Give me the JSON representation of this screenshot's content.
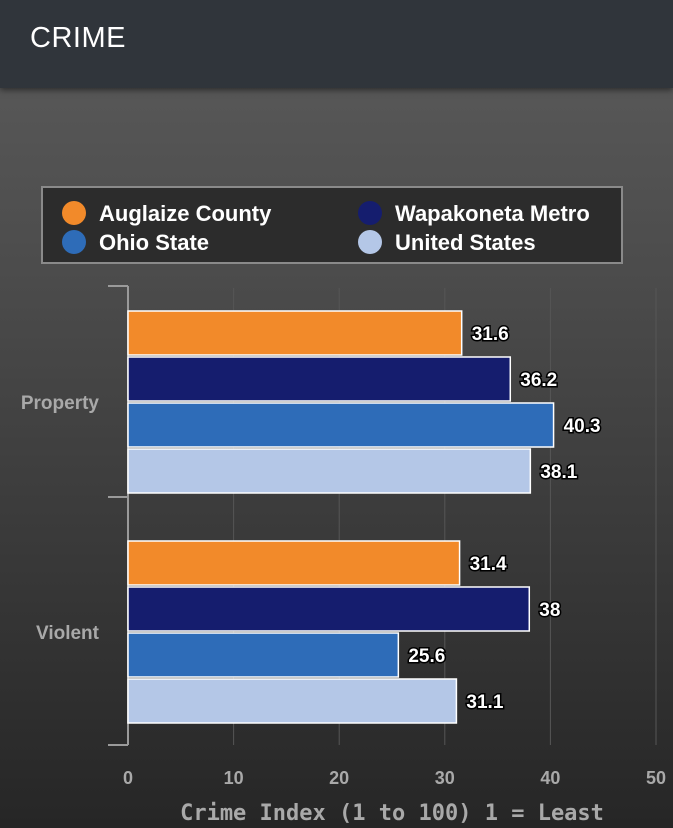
{
  "header": {
    "title": "CRIME"
  },
  "chart_data": {
    "type": "bar",
    "orientation": "horizontal",
    "categories": [
      "Property",
      "Violent"
    ],
    "series": [
      {
        "name": "Auglaize County",
        "color": "#f28a2a",
        "values": [
          31.6,
          31.4
        ]
      },
      {
        "name": "Wapakoneta Metro",
        "color": "#151d6e",
        "values": [
          36.2,
          38
        ]
      },
      {
        "name": "Ohio State",
        "color": "#2e6cb8",
        "values": [
          40.3,
          25.6
        ]
      },
      {
        "name": "United States",
        "color": "#b4c7e7",
        "values": [
          38.1,
          31.1
        ]
      }
    ],
    "value_labels": [
      [
        "31.6",
        "31.4"
      ],
      [
        "36.2",
        "38"
      ],
      [
        "40.3",
        "25.6"
      ],
      [
        "38.1",
        "31.1"
      ]
    ],
    "xlabel": "Crime Index (1 to 100) 1 = Least",
    "xlim": [
      0,
      50
    ],
    "xticks": [
      "0",
      "10",
      "20",
      "30",
      "40",
      "50"
    ],
    "grid": true,
    "legend": "top"
  }
}
